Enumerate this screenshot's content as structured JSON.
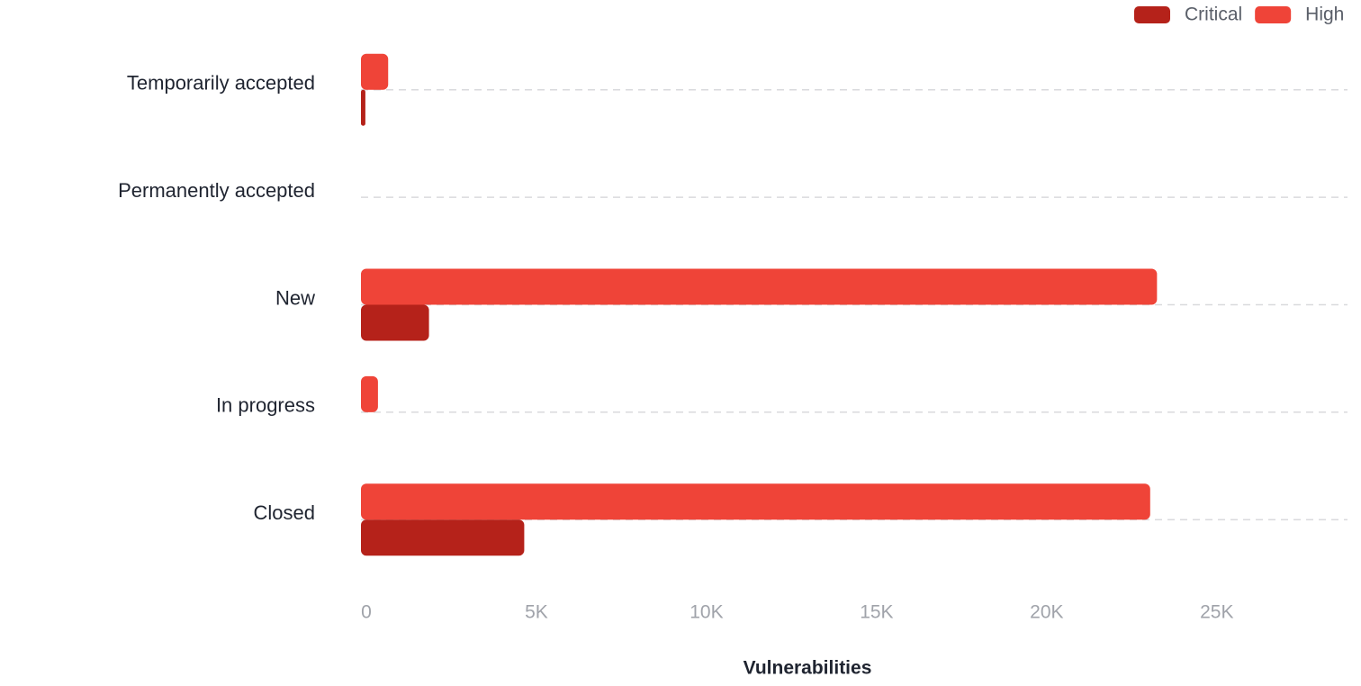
{
  "chart_data": {
    "type": "hbar",
    "x_label": "Vulnerabilities",
    "categories": [
      "Temporarily accepted",
      "Permanently accepted",
      "New",
      "In progress",
      "Closed"
    ],
    "series": [
      {
        "name": "Critical",
        "color": "#b5221a",
        "values": [
          130,
          0,
          2000,
          0,
          4800
        ]
      },
      {
        "name": "High",
        "color": "#ef4438",
        "values": [
          800,
          0,
          23400,
          500,
          23200
        ]
      }
    ],
    "xlim": [
      0,
      29000
    ],
    "xticks": [
      0,
      {
        "value": 5000,
        "label": "5K"
      },
      {
        "value": 10000,
        "label": "10K"
      },
      {
        "value": 15000,
        "label": "15K"
      },
      {
        "value": 20000,
        "label": "20K"
      },
      {
        "value": 25000,
        "label": "25K"
      }
    ],
    "legend": "top-right"
  }
}
